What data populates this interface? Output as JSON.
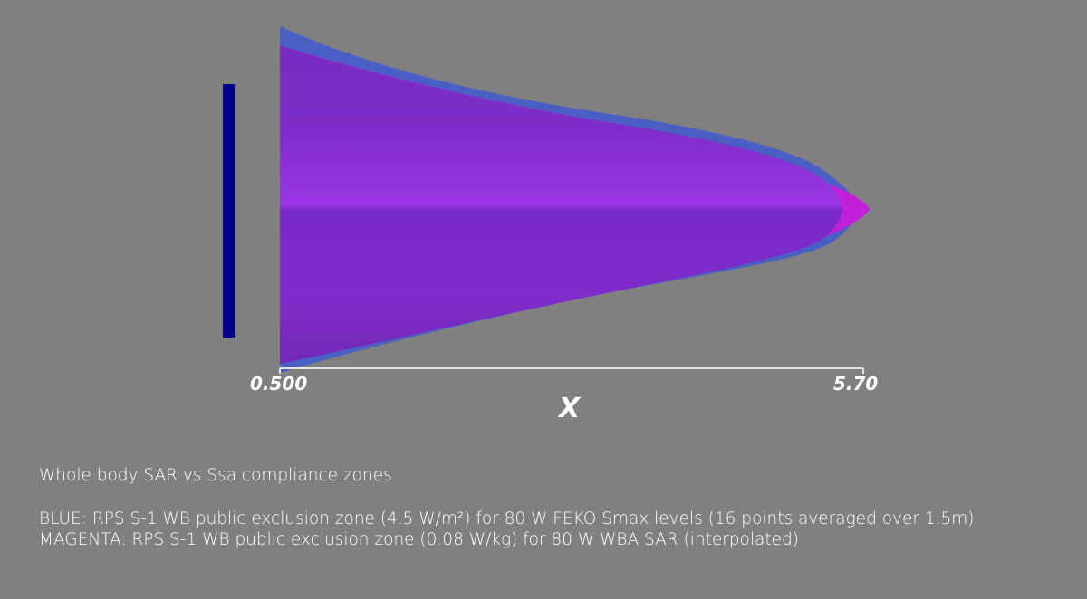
{
  "axis": {
    "title": "X",
    "tick_min": "0.500",
    "tick_max": "5.70"
  },
  "caption": {
    "title": "Whole body SAR vs Ssa compliance zones",
    "blue_line": "BLUE: RPS S-1 WB public exclusion zone (4.5 W/m²) for 80 W FEKO Smax levels (16 points averaged over 1.5m)",
    "magenta_line": "MAGENTA: RPS S-1 WB public exclusion zone (0.08 W/kg) for 80 W WBA SAR (interpolated)"
  },
  "colors": {
    "background": "#808080",
    "blue_zone": "#4a5fc4",
    "magenta_zone": "#c21fd8",
    "overlap_zone": "#8b2fd2",
    "antenna": "#00008b",
    "axis_line": "#e6e6e6"
  }
}
